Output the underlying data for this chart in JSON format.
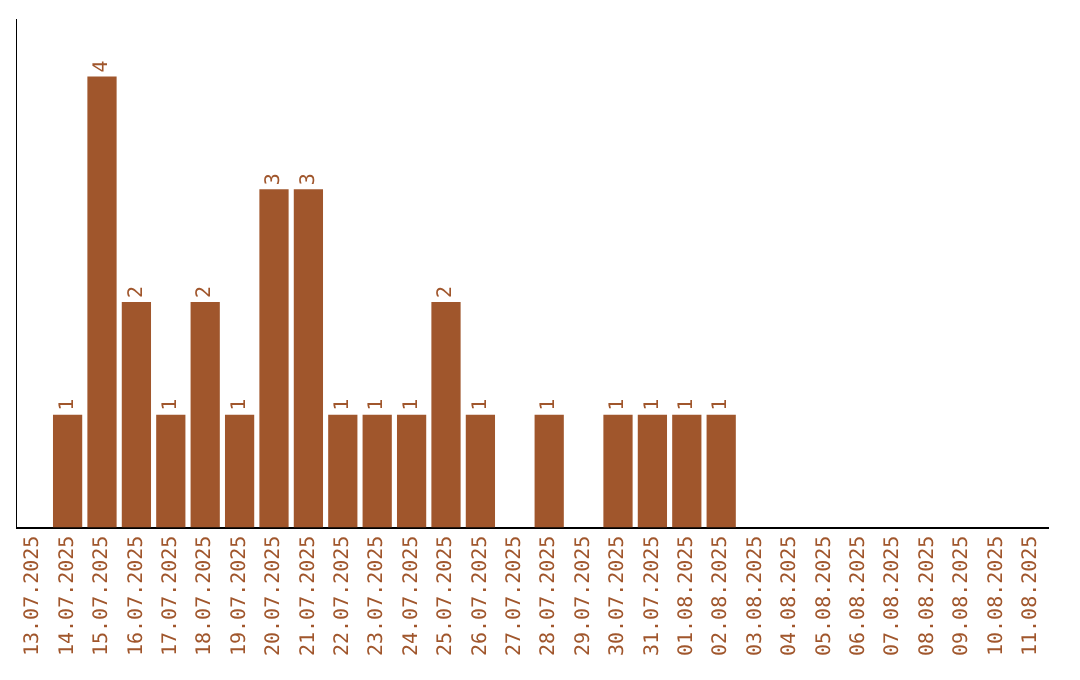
{
  "chart_data": {
    "type": "bar",
    "categories": [
      "13.07.2025",
      "14.07.2025",
      "15.07.2025",
      "16.07.2025",
      "17.07.2025",
      "18.07.2025",
      "19.07.2025",
      "20.07.2025",
      "21.07.2025",
      "22.07.2025",
      "23.07.2025",
      "24.07.2025",
      "25.07.2025",
      "26.07.2025",
      "27.07.2025",
      "28.07.2025",
      "29.07.2025",
      "30.07.2025",
      "31.07.2025",
      "01.08.2025",
      "02.08.2025",
      "03.08.2025",
      "04.08.2025",
      "05.08.2025",
      "06.08.2025",
      "07.08.2025",
      "08.08.2025",
      "09.08.2025",
      "10.08.2025",
      "11.08.2025"
    ],
    "values": [
      0,
      1,
      4,
      2,
      1,
      2,
      1,
      3,
      3,
      1,
      1,
      1,
      2,
      1,
      0,
      1,
      0,
      1,
      1,
      1,
      1,
      0,
      0,
      0,
      0,
      0,
      0,
      0,
      0,
      0
    ],
    "value_labels": [
      null,
      "1",
      "4",
      "2",
      "1",
      "2",
      "1",
      "3",
      "3",
      "1",
      "1",
      "1",
      "2",
      "1",
      null,
      "1",
      null,
      "1",
      "1",
      "1",
      "1",
      null,
      null,
      null,
      null,
      null,
      null,
      null,
      null,
      null
    ],
    "color": "#a0562c",
    "grid": false,
    "legend": false,
    "tick_labels": "x"
  }
}
